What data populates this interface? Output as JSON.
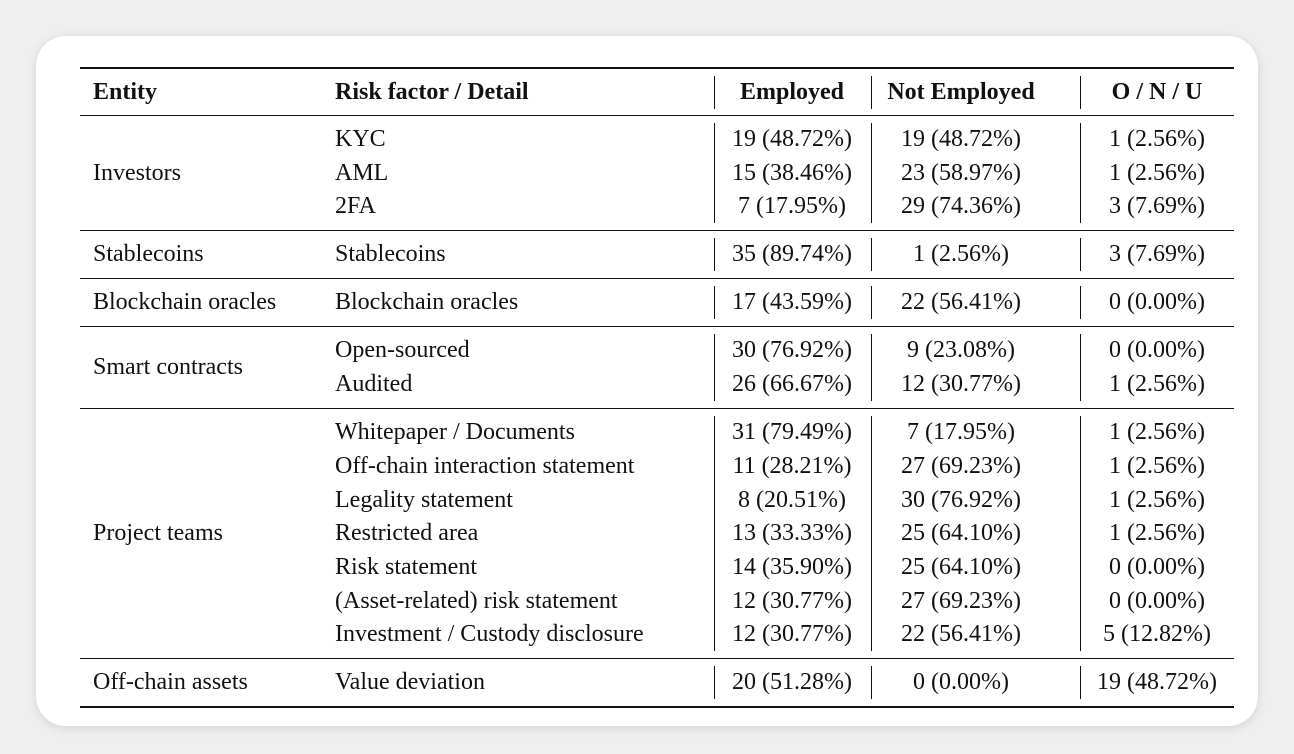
{
  "table": {
    "header": [
      "Entity",
      "Risk factor / Detail",
      "Employed",
      "Not Employed",
      "O / N / U"
    ],
    "groups": [
      {
        "entity": "Investors",
        "rows": [
          [
            "KYC",
            "19 (48.72%)",
            "19 (48.72%)",
            "1 (2.56%)"
          ],
          [
            "AML",
            "15 (38.46%)",
            "23 (58.97%)",
            "1 (2.56%)"
          ],
          [
            "2FA",
            "7 (17.95%)",
            "29 (74.36%)",
            "3 (7.69%)"
          ]
        ]
      },
      {
        "entity": "Stablecoins",
        "rows": [
          [
            "Stablecoins",
            "35 (89.74%)",
            "1 (2.56%)",
            "3 (7.69%)"
          ]
        ]
      },
      {
        "entity": "Blockchain oracles",
        "rows": [
          [
            "Blockchain oracles",
            "17 (43.59%)",
            "22 (56.41%)",
            "0 (0.00%)"
          ]
        ]
      },
      {
        "entity": "Smart contracts",
        "rows": [
          [
            "Open-sourced",
            "30 (76.92%)",
            "9 (23.08%)",
            "0 (0.00%)"
          ],
          [
            "Audited",
            "26 (66.67%)",
            "12 (30.77%)",
            "1 (2.56%)"
          ]
        ]
      },
      {
        "entity": "Project teams",
        "rows": [
          [
            "Whitepaper / Documents",
            "31 (79.49%)",
            "7 (17.95%)",
            "1 (2.56%)"
          ],
          [
            "Off-chain interaction statement",
            "11 (28.21%)",
            "27 (69.23%)",
            "1 (2.56%)"
          ],
          [
            "Legality statement",
            "8 (20.51%)",
            "30 (76.92%)",
            "1 (2.56%)"
          ],
          [
            "Restricted area",
            "13 (33.33%)",
            "25 (64.10%)",
            "1 (2.56%)"
          ],
          [
            "Risk statement",
            "14 (35.90%)",
            "25 (64.10%)",
            "0 (0.00%)"
          ],
          [
            "(Asset-related) risk statement",
            "12 (30.77%)",
            "27 (69.23%)",
            "0 (0.00%)"
          ],
          [
            "Investment / Custody disclosure",
            "12 (30.77%)",
            "22 (56.41%)",
            "5 (12.82%)"
          ]
        ]
      },
      {
        "entity": "Off-chain assets",
        "rows": [
          [
            "Value deviation",
            "20 (51.28%)",
            "0 (0.00%)",
            "19 (48.72%)"
          ]
        ]
      }
    ]
  }
}
